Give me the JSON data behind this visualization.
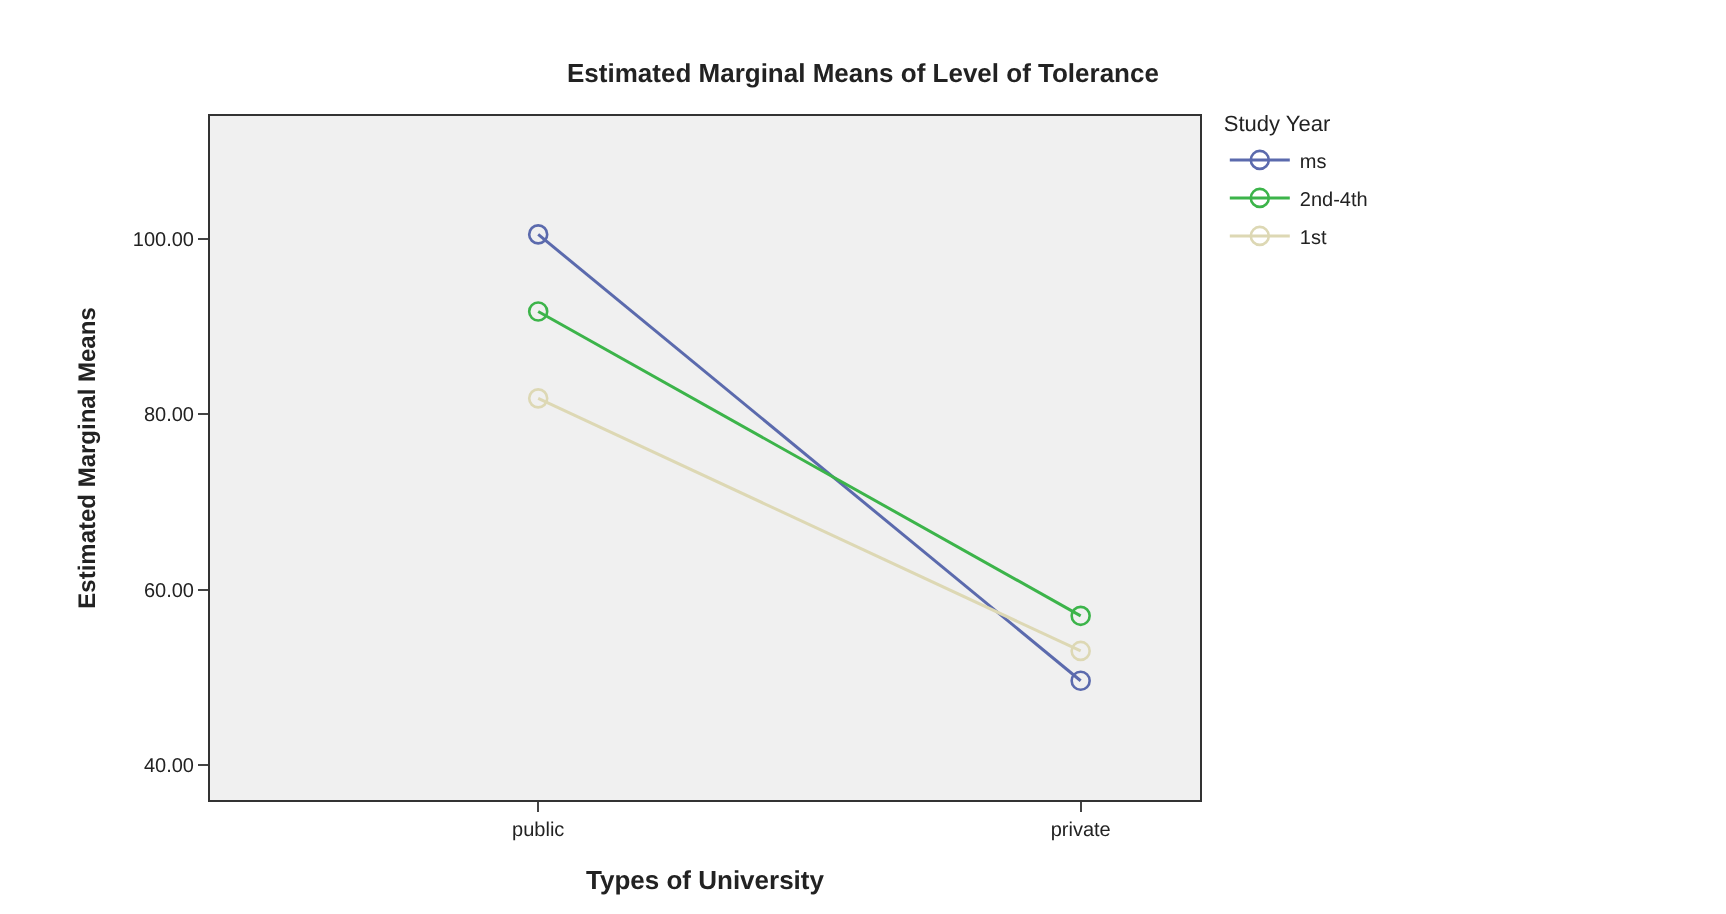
{
  "chart_data": {
    "type": "line",
    "title": "Estimated Marginal Means of Level of Tolerance",
    "xlabel": "Types of University",
    "ylabel": "Estimated Marginal Means",
    "legend_title": "Study Year",
    "categories": [
      "public",
      "private"
    ],
    "series": [
      {
        "name": "ms",
        "color": "#5b6aad",
        "values": [
          100.5,
          49.6
        ]
      },
      {
        "name": "2nd-4th",
        "color": "#3cb44a",
        "values": [
          91.7,
          57.0
        ]
      },
      {
        "name": "1st",
        "color": "#ddd8b4",
        "values": [
          81.8,
          53.0
        ]
      }
    ],
    "ylim": [
      36,
      114
    ],
    "yticks": [
      {
        "value": 40,
        "label": "40.00"
      },
      {
        "value": 60,
        "label": "60.00"
      },
      {
        "value": 80,
        "label": "80.00"
      },
      {
        "value": 100,
        "label": "100.00"
      }
    ],
    "marker": "circle",
    "legend": "top right",
    "grid": false
  }
}
